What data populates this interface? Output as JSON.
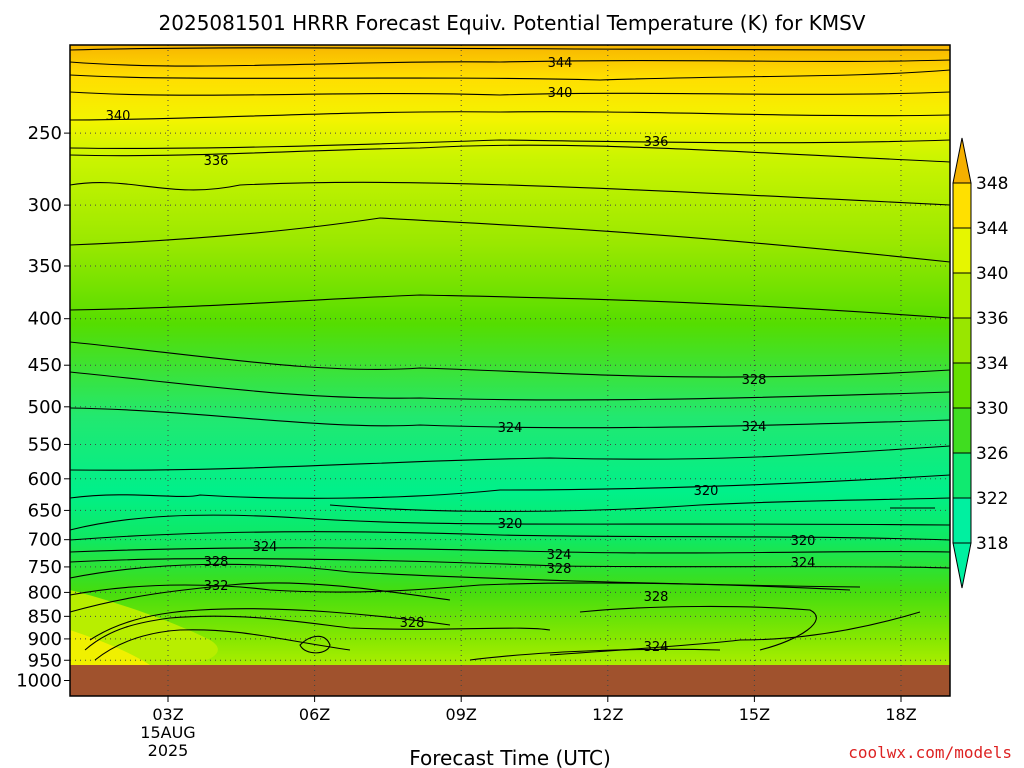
{
  "chart_data": {
    "type": "contour",
    "title": "2025081501 HRRR Forecast Equiv. Potential Temperature (K) for KMSV",
    "xlabel": "Forecast Time (UTC)",
    "ylabel": "",
    "x_ticks": [
      "03Z",
      "06Z",
      "09Z",
      "12Z",
      "15Z",
      "18Z"
    ],
    "x_date_lines": [
      "15AUG",
      "2025"
    ],
    "y_ticks": [
      250,
      300,
      350,
      400,
      450,
      500,
      550,
      600,
      650,
      700,
      750,
      800,
      850,
      900,
      950,
      1000
    ],
    "y_scale": "log-pressure",
    "y_range": [
      1000,
      200
    ],
    "contour_interval": 4,
    "contour_labels": [
      344,
      340,
      336,
      328,
      324,
      320,
      332
    ],
    "colorbar": {
      "levels": [
        318,
        322,
        326,
        330,
        334,
        336,
        340,
        344,
        348
      ],
      "labels": [
        "318",
        "322",
        "326",
        "330",
        "334",
        "336",
        "340",
        "344",
        "348"
      ]
    },
    "surface_pressure_approx": 970,
    "grid": "dotted"
  },
  "credit": "coolwx.com/models"
}
